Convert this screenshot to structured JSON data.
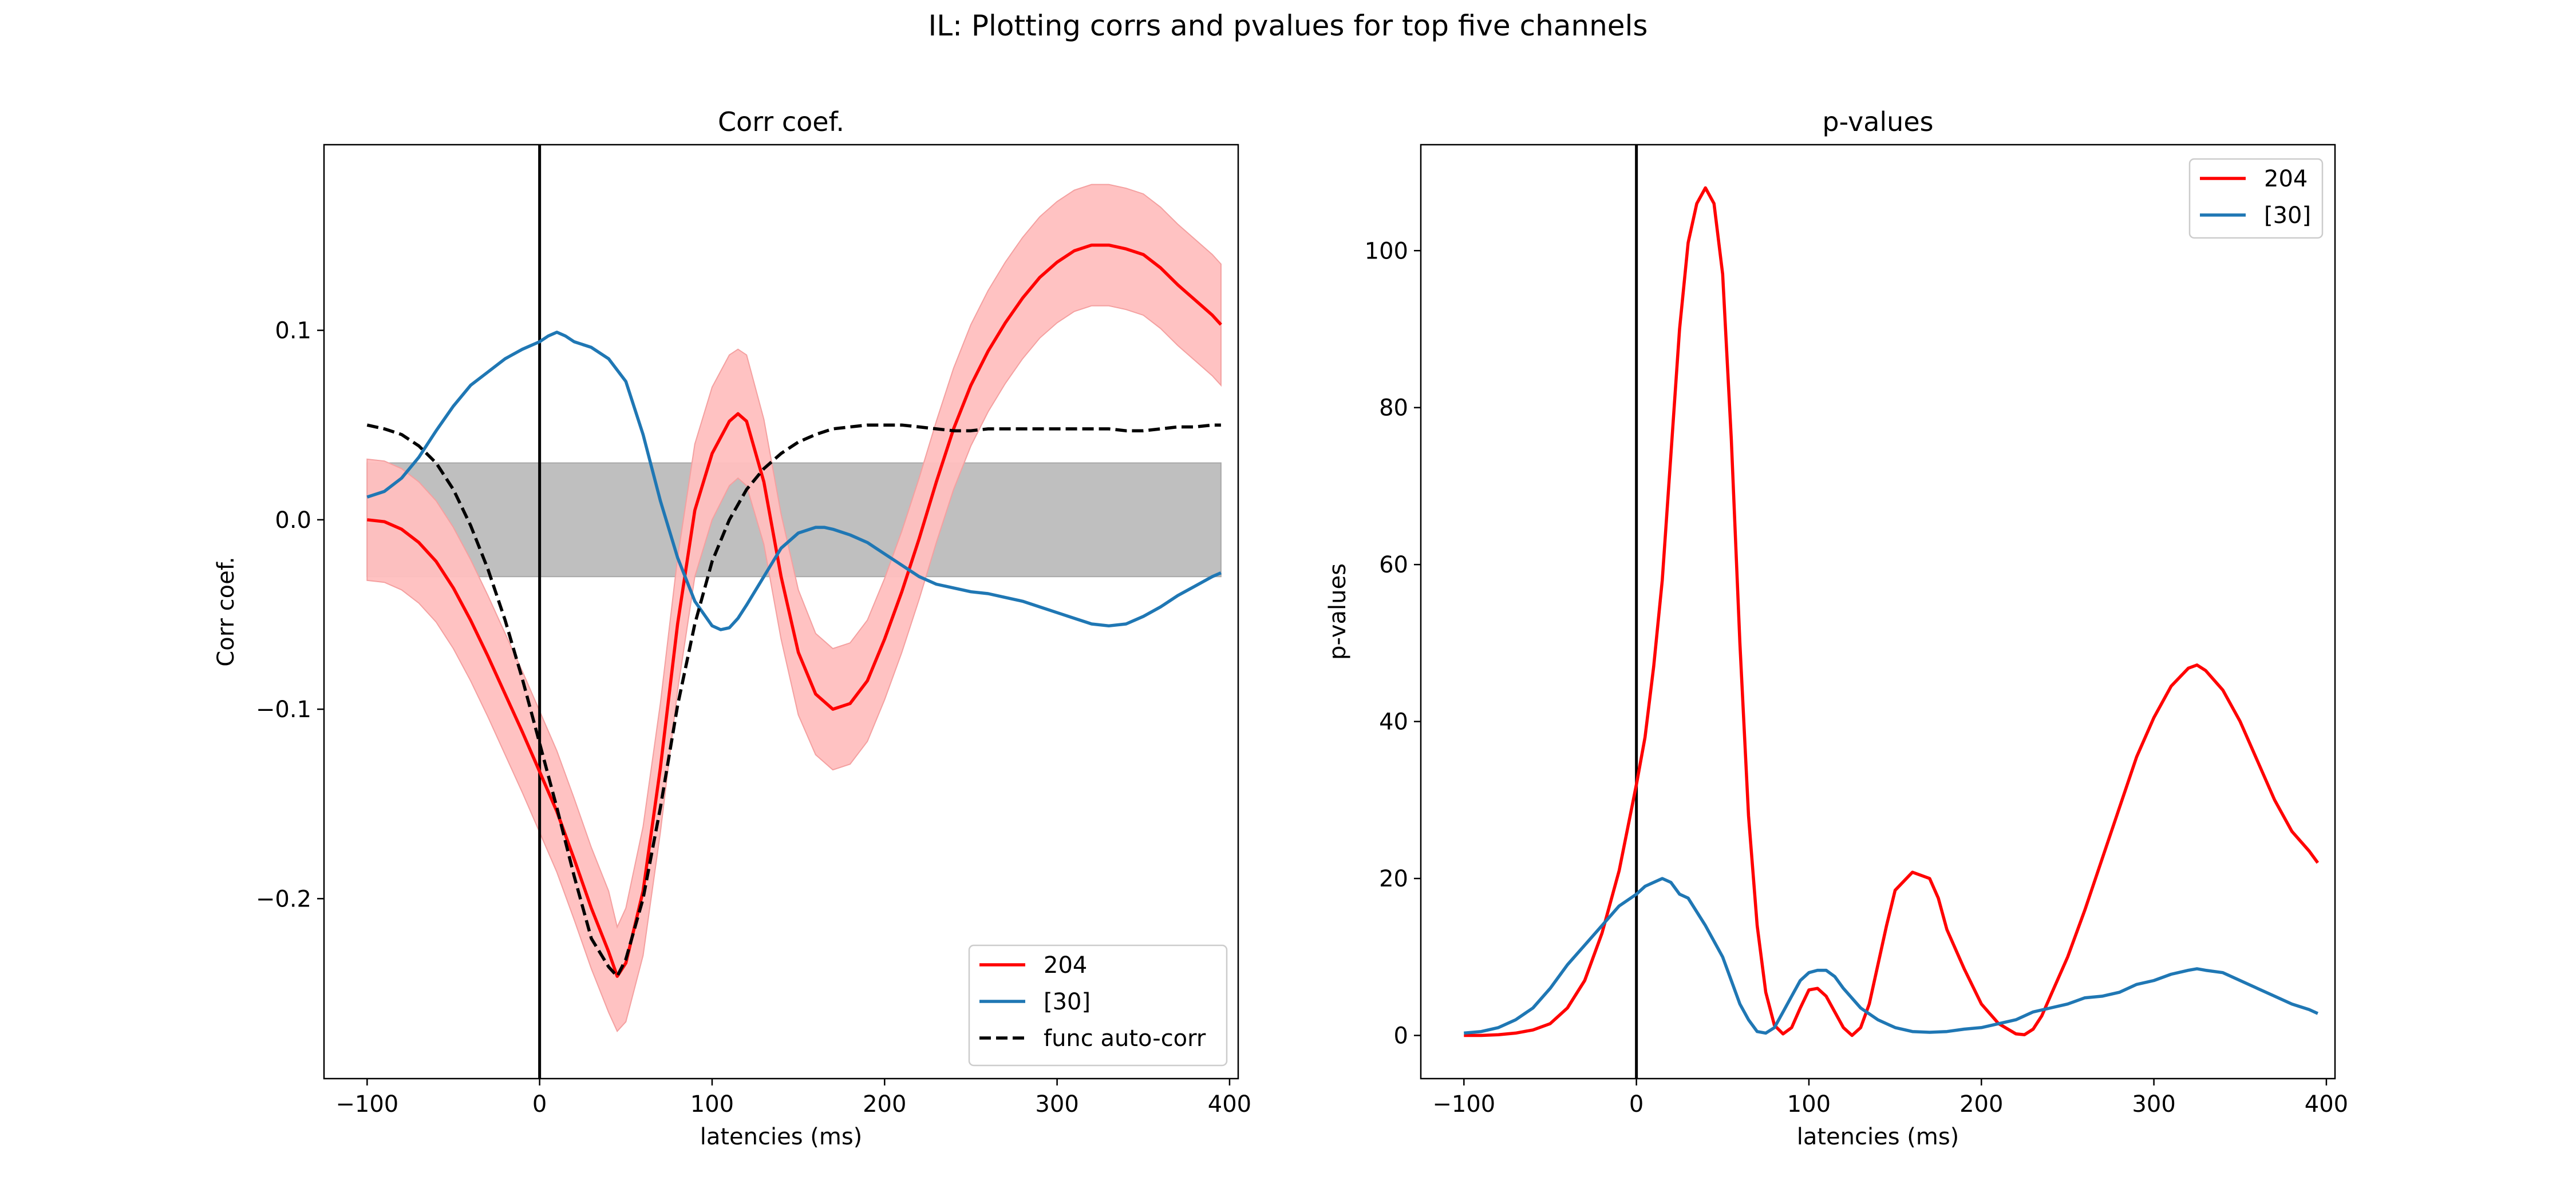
{
  "figure": {
    "suptitle": "IL: Plotting corrs and pvalues for top five channels"
  },
  "colors": {
    "red": "#ff0000",
    "blue": "#1f77b4",
    "black": "#000000",
    "gray_band": "#bfbfbf",
    "red_band": "#ffbfbf"
  },
  "chart_data": [
    {
      "type": "line",
      "title": "Corr coef.",
      "xlabel": "latencies (ms)",
      "ylabel": "Corr coef.",
      "xlim": [
        -125,
        405
      ],
      "ylim": [
        -0.295,
        0.198
      ],
      "xticks": [
        -100,
        0,
        100,
        200,
        300,
        400
      ],
      "xtick_labels": [
        "−100",
        "0",
        "100",
        "200",
        "300",
        "400"
      ],
      "yticks": [
        -0.2,
        -0.1,
        0.0,
        0.1
      ],
      "ytick_labels": [
        "−0.2",
        "−0.1",
        "0.0",
        "0.1"
      ],
      "vline_x": 0,
      "legend": {
        "position": "lower right",
        "entries": [
          "204",
          "[30]",
          "func auto-corr"
        ]
      },
      "gray_band": {
        "x": [
          -100,
          395
        ],
        "lower": -0.03,
        "upper": 0.03
      },
      "series": [
        {
          "name": "204",
          "color": "#ff0000",
          "style": "solid",
          "x": [
            -100,
            -90,
            -80,
            -70,
            -60,
            -50,
            -40,
            -30,
            -20,
            -10,
            0,
            10,
            20,
            30,
            40,
            45,
            50,
            60,
            70,
            80,
            90,
            100,
            110,
            115,
            120,
            130,
            140,
            150,
            160,
            170,
            180,
            190,
            200,
            210,
            220,
            230,
            240,
            250,
            260,
            270,
            280,
            290,
            300,
            310,
            320,
            330,
            340,
            350,
            360,
            370,
            380,
            390,
            395
          ],
          "y": [
            0.0,
            -0.001,
            -0.005,
            -0.012,
            -0.022,
            -0.036,
            -0.053,
            -0.072,
            -0.092,
            -0.112,
            -0.133,
            -0.154,
            -0.179,
            -0.205,
            -0.228,
            -0.241,
            -0.234,
            -0.196,
            -0.131,
            -0.055,
            0.005,
            0.035,
            0.052,
            0.056,
            0.052,
            0.02,
            -0.03,
            -0.07,
            -0.092,
            -0.1,
            -0.097,
            -0.085,
            -0.063,
            -0.038,
            -0.01,
            0.02,
            0.048,
            0.071,
            0.089,
            0.104,
            0.117,
            0.128,
            0.136,
            0.142,
            0.145,
            0.145,
            0.143,
            0.14,
            0.133,
            0.124,
            0.116,
            0.108,
            0.103
          ],
          "band_lower": [
            -0.032,
            -0.033,
            -0.037,
            -0.044,
            -0.054,
            -0.068,
            -0.085,
            -0.104,
            -0.124,
            -0.144,
            -0.165,
            -0.186,
            -0.211,
            -0.237,
            -0.26,
            -0.27,
            -0.265,
            -0.23,
            -0.165,
            -0.09,
            -0.03,
            0.0,
            0.018,
            0.022,
            0.018,
            -0.013,
            -0.063,
            -0.103,
            -0.124,
            -0.132,
            -0.129,
            -0.117,
            -0.095,
            -0.07,
            -0.042,
            -0.012,
            0.016,
            0.039,
            0.057,
            0.072,
            0.085,
            0.096,
            0.104,
            0.11,
            0.113,
            0.113,
            0.111,
            0.108,
            0.101,
            0.092,
            0.084,
            0.076,
            0.071
          ],
          "band_upper": [
            0.032,
            0.031,
            0.027,
            0.02,
            0.01,
            -0.004,
            -0.021,
            -0.04,
            -0.06,
            -0.08,
            -0.101,
            -0.122,
            -0.147,
            -0.173,
            -0.196,
            -0.215,
            -0.205,
            -0.162,
            -0.097,
            -0.02,
            0.04,
            0.07,
            0.087,
            0.09,
            0.087,
            0.053,
            0.003,
            -0.037,
            -0.06,
            -0.068,
            -0.065,
            -0.053,
            -0.031,
            -0.006,
            0.022,
            0.052,
            0.08,
            0.103,
            0.121,
            0.136,
            0.149,
            0.16,
            0.168,
            0.174,
            0.177,
            0.177,
            0.175,
            0.172,
            0.165,
            0.156,
            0.148,
            0.14,
            0.135
          ]
        },
        {
          "name": "[30]",
          "color": "#1f77b4",
          "style": "solid",
          "x": [
            -100,
            -90,
            -80,
            -70,
            -60,
            -50,
            -40,
            -30,
            -20,
            -10,
            0,
            5,
            10,
            15,
            20,
            30,
            40,
            50,
            60,
            70,
            80,
            90,
            100,
            105,
            110,
            115,
            120,
            130,
            140,
            150,
            160,
            165,
            170,
            180,
            190,
            200,
            210,
            220,
            230,
            240,
            250,
            260,
            270,
            280,
            290,
            300,
            310,
            320,
            330,
            340,
            350,
            360,
            370,
            380,
            390,
            395
          ],
          "y": [
            0.012,
            0.015,
            0.022,
            0.033,
            0.047,
            0.06,
            0.071,
            0.078,
            0.085,
            0.09,
            0.094,
            0.097,
            0.099,
            0.097,
            0.094,
            0.091,
            0.085,
            0.073,
            0.045,
            0.01,
            -0.02,
            -0.043,
            -0.056,
            -0.058,
            -0.057,
            -0.052,
            -0.045,
            -0.03,
            -0.015,
            -0.007,
            -0.004,
            -0.004,
            -0.005,
            -0.008,
            -0.012,
            -0.018,
            -0.024,
            -0.03,
            -0.034,
            -0.036,
            -0.038,
            -0.039,
            -0.041,
            -0.043,
            -0.046,
            -0.049,
            -0.052,
            -0.055,
            -0.056,
            -0.055,
            -0.051,
            -0.046,
            -0.04,
            -0.035,
            -0.03,
            -0.028
          ]
        },
        {
          "name": "func auto-corr",
          "color": "#000000",
          "style": "dashed",
          "x": [
            -100,
            -90,
            -80,
            -70,
            -60,
            -50,
            -40,
            -30,
            -20,
            -10,
            0,
            10,
            20,
            30,
            40,
            45,
            50,
            60,
            70,
            80,
            90,
            100,
            110,
            120,
            130,
            140,
            150,
            160,
            170,
            180,
            190,
            200,
            210,
            220,
            230,
            240,
            250,
            260,
            270,
            280,
            290,
            300,
            310,
            320,
            330,
            340,
            350,
            360,
            370,
            380,
            390,
            395
          ],
          "y": [
            0.05,
            0.048,
            0.045,
            0.039,
            0.03,
            0.016,
            -0.003,
            -0.026,
            -0.053,
            -0.084,
            -0.118,
            -0.152,
            -0.188,
            -0.221,
            -0.236,
            -0.241,
            -0.232,
            -0.2,
            -0.152,
            -0.098,
            -0.055,
            -0.022,
            0.0,
            0.016,
            0.027,
            0.035,
            0.041,
            0.045,
            0.048,
            0.049,
            0.05,
            0.05,
            0.05,
            0.049,
            0.048,
            0.047,
            0.047,
            0.048,
            0.048,
            0.048,
            0.048,
            0.048,
            0.048,
            0.048,
            0.048,
            0.047,
            0.047,
            0.048,
            0.049,
            0.049,
            0.05,
            0.05
          ]
        }
      ]
    },
    {
      "type": "line",
      "title": "p-values",
      "xlabel": "latencies (ms)",
      "ylabel": "p-values",
      "xlim": [
        -125,
        405
      ],
      "ylim": [
        -5.5,
        113.5
      ],
      "xticks": [
        -100,
        0,
        100,
        200,
        300,
        400
      ],
      "xtick_labels": [
        "−100",
        "0",
        "100",
        "200",
        "300",
        "400"
      ],
      "yticks": [
        0,
        20,
        40,
        60,
        80,
        100
      ],
      "ytick_labels": [
        "0",
        "20",
        "40",
        "60",
        "80",
        "100"
      ],
      "vline_x": 0,
      "legend": {
        "position": "upper right",
        "entries": [
          "204",
          "[30]"
        ]
      },
      "series": [
        {
          "name": "204",
          "color": "#ff0000",
          "style": "solid",
          "x": [
            -100,
            -90,
            -80,
            -70,
            -60,
            -50,
            -40,
            -30,
            -20,
            -10,
            0,
            5,
            10,
            15,
            20,
            25,
            30,
            35,
            40,
            45,
            50,
            55,
            60,
            65,
            70,
            75,
            80,
            85,
            90,
            95,
            100,
            105,
            110,
            115,
            120,
            125,
            130,
            135,
            140,
            145,
            150,
            160,
            170,
            175,
            180,
            190,
            200,
            210,
            220,
            225,
            230,
            235,
            240,
            250,
            260,
            270,
            280,
            290,
            300,
            310,
            320,
            325,
            330,
            340,
            350,
            360,
            370,
            380,
            390,
            395
          ],
          "y": [
            0.0,
            0.0,
            0.1,
            0.3,
            0.7,
            1.5,
            3.5,
            7.0,
            13.0,
            21.0,
            32.0,
            38.0,
            47.0,
            58.0,
            74.0,
            90.0,
            101.0,
            106.0,
            108.0,
            106.0,
            97.0,
            76.0,
            50.0,
            28.0,
            14.0,
            5.5,
            1.3,
            0.2,
            1.0,
            3.5,
            5.8,
            6.0,
            5.0,
            3.0,
            1.0,
            0.0,
            1.0,
            4.0,
            9.0,
            14.0,
            18.5,
            20.8,
            20.0,
            17.5,
            13.5,
            8.5,
            4.0,
            1.5,
            0.2,
            0.1,
            0.8,
            2.5,
            5.0,
            10.0,
            16.0,
            22.5,
            29.0,
            35.5,
            40.5,
            44.5,
            46.8,
            47.2,
            46.5,
            44.0,
            40.0,
            35.0,
            30.0,
            26.0,
            23.5,
            22.0
          ]
        },
        {
          "name": "[30]",
          "color": "#1f77b4",
          "style": "solid",
          "x": [
            -100,
            -90,
            -80,
            -70,
            -60,
            -50,
            -40,
            -30,
            -20,
            -10,
            0,
            5,
            10,
            15,
            20,
            25,
            30,
            40,
            50,
            55,
            60,
            65,
            70,
            75,
            80,
            85,
            90,
            95,
            100,
            105,
            110,
            115,
            120,
            130,
            140,
            150,
            160,
            170,
            180,
            190,
            200,
            210,
            220,
            230,
            240,
            250,
            260,
            270,
            280,
            290,
            300,
            310,
            320,
            325,
            330,
            340,
            350,
            360,
            370,
            380,
            390,
            395
          ],
          "y": [
            0.3,
            0.5,
            1.0,
            2.0,
            3.5,
            6.0,
            9.0,
            11.5,
            14.0,
            16.5,
            18.0,
            19.0,
            19.5,
            20.0,
            19.5,
            18.0,
            17.5,
            14.0,
            10.0,
            7.0,
            4.0,
            2.0,
            0.5,
            0.3,
            1.0,
            3.0,
            5.0,
            7.0,
            8.0,
            8.3,
            8.3,
            7.5,
            6.0,
            3.5,
            2.0,
            1.0,
            0.5,
            0.4,
            0.5,
            0.8,
            1.0,
            1.5,
            2.0,
            3.0,
            3.5,
            4.0,
            4.8,
            5.0,
            5.5,
            6.5,
            7.0,
            7.8,
            8.3,
            8.5,
            8.3,
            8.0,
            7.0,
            6.0,
            5.0,
            4.0,
            3.3,
            2.8
          ]
        }
      ]
    }
  ]
}
